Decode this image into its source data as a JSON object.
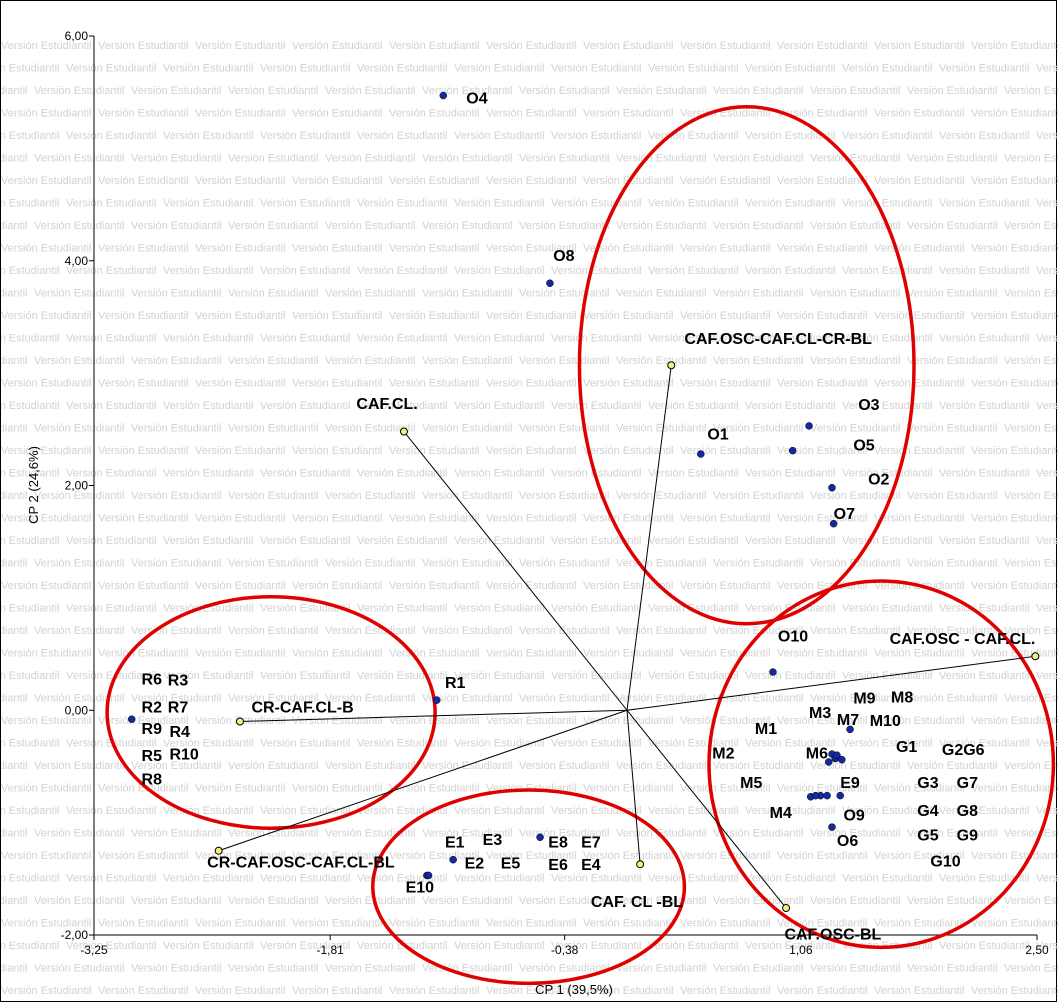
{
  "watermark": "Versión Estudiantil",
  "chart_data": {
    "type": "scatter",
    "xlabel": "CP 1 (39,5%)",
    "ylabel": "CP 2 (24,6%)",
    "xlim": [
      -3.25,
      2.5
    ],
    "ylim": [
      -2.0,
      6.0
    ],
    "xticks": [
      -3.25,
      -1.81,
      -0.38,
      1.06,
      2.5
    ],
    "xtick_labels": [
      "-3,25",
      "-1,81",
      "-0,38",
      "1,06",
      "2,50"
    ],
    "yticks": [
      -2.0,
      0.0,
      2.0,
      4.0,
      6.0
    ],
    "ytick_labels": [
      "-2,00",
      "0,00",
      "2,00",
      "4,00",
      "6,00"
    ],
    "colors": {
      "point": "#1428a0",
      "vector_point": "#f5f07a",
      "ellipse": "#e00000",
      "vector_line": "#000000"
    },
    "points": [
      {
        "label": "O4",
        "x": -1.12,
        "y": 5.47,
        "lx": -0.98,
        "ly": 5.4
      },
      {
        "label": "O8",
        "x": -0.47,
        "y": 3.8,
        "lx": -0.45,
        "ly": 4.0
      },
      {
        "label": "O1",
        "x": 0.45,
        "y": 2.28,
        "lx": 0.49,
        "ly": 2.41
      },
      {
        "label": "O3",
        "x": 1.11,
        "y": 2.53,
        "lx": 1.41,
        "ly": 2.67
      },
      {
        "label": "O5",
        "x": 1.01,
        "y": 2.31,
        "lx": 1.38,
        "ly": 2.31
      },
      {
        "label": "O2",
        "x": 1.25,
        "y": 1.98,
        "lx": 1.47,
        "ly": 2.01
      },
      {
        "label": "O7",
        "x": 1.26,
        "y": 1.66,
        "lx": 1.26,
        "ly": 1.7
      },
      {
        "label": "O10",
        "x": 0.89,
        "y": 0.34,
        "lx": 0.92,
        "ly": 0.61
      },
      {
        "label": "R1",
        "x": -1.16,
        "y": 0.09,
        "lx": -1.11,
        "ly": 0.2
      },
      {
        "label": "R6",
        "x": -3.02,
        "y": -0.08,
        "lx": -2.96,
        "ly": 0.23
      },
      {
        "label": "R3",
        "x": -3.02,
        "y": -0.08,
        "lx": -2.8,
        "ly": 0.22
      },
      {
        "label": "R2",
        "x": -3.02,
        "y": -0.08,
        "lx": -2.96,
        "ly": -0.02
      },
      {
        "label": "R7",
        "x": -3.02,
        "y": -0.08,
        "lx": -2.8,
        "ly": -0.02
      },
      {
        "label": "R9",
        "x": -3.02,
        "y": -0.08,
        "lx": -2.96,
        "ly": -0.21
      },
      {
        "label": "R4",
        "x": -3.02,
        "y": -0.08,
        "lx": -2.79,
        "ly": -0.24
      },
      {
        "label": "R5",
        "x": -3.02,
        "y": -0.08,
        "lx": -2.96,
        "ly": -0.45
      },
      {
        "label": "R10",
        "x": -3.02,
        "y": -0.08,
        "lx": -2.79,
        "ly": -0.44
      },
      {
        "label": "R8",
        "x": -3.02,
        "y": -0.08,
        "lx": -2.96,
        "ly": -0.66
      },
      {
        "label": "M9",
        "x": 1.36,
        "y": -0.17,
        "lx": 1.38,
        "ly": 0.06
      },
      {
        "label": "M8",
        "x": 1.36,
        "y": -0.17,
        "lx": 1.61,
        "ly": 0.07
      },
      {
        "label": "M3",
        "x": 1.36,
        "y": -0.17,
        "lx": 1.11,
        "ly": -0.07
      },
      {
        "label": "M7",
        "x": 1.36,
        "y": -0.17,
        "lx": 1.28,
        "ly": -0.13
      },
      {
        "label": "M10",
        "x": 1.36,
        "y": -0.17,
        "lx": 1.48,
        "ly": -0.14
      },
      {
        "label": "M1",
        "x": 1.25,
        "y": -0.39,
        "lx": 0.78,
        "ly": -0.21
      },
      {
        "label": "M6",
        "x": 1.27,
        "y": -0.43,
        "lx": 1.09,
        "ly": -0.43
      },
      {
        "label": "M2",
        "x": 1.23,
        "y": -0.46,
        "lx": 0.52,
        "ly": -0.43
      },
      {
        "label": "M5",
        "x": 1.18,
        "y": -0.76,
        "lx": 0.69,
        "ly": -0.69
      },
      {
        "label": "M4",
        "x": 1.12,
        "y": -0.77,
        "lx": 0.87,
        "ly": -0.96
      },
      {
        "label": "E9",
        "x": 1.15,
        "y": -0.76,
        "lx": 1.3,
        "ly": -0.69
      },
      {
        "label": "O9",
        "x": 1.25,
        "y": -1.04,
        "lx": 1.32,
        "ly": -0.98
      },
      {
        "label": "O6",
        "x": 1.25,
        "y": -1.04,
        "lx": 1.28,
        "ly": -1.21
      },
      {
        "label": "G1",
        "x": 1.36,
        "y": -0.17,
        "lx": 1.64,
        "ly": -0.37
      },
      {
        "label": "G2G6",
        "x": 1.36,
        "y": -0.17,
        "lx": 1.92,
        "ly": -0.4
      },
      {
        "label": "G3",
        "x": 1.36,
        "y": -0.17,
        "lx": 1.77,
        "ly": -0.69
      },
      {
        "label": "G7",
        "x": 1.36,
        "y": -0.17,
        "lx": 2.01,
        "ly": -0.69
      },
      {
        "label": "G4",
        "x": 1.36,
        "y": -0.17,
        "lx": 1.77,
        "ly": -0.94
      },
      {
        "label": "G8",
        "x": 1.36,
        "y": -0.17,
        "lx": 2.01,
        "ly": -0.94
      },
      {
        "label": "G5",
        "x": 1.36,
        "y": -0.17,
        "lx": 1.77,
        "ly": -1.16
      },
      {
        "label": "G9",
        "x": 1.36,
        "y": -0.17,
        "lx": 2.01,
        "ly": -1.16
      },
      {
        "label": "G10",
        "x": 1.36,
        "y": -0.17,
        "lx": 1.85,
        "ly": -1.39
      },
      {
        "label": "E1",
        "x": -1.06,
        "y": -1.33,
        "lx": -1.11,
        "ly": -1.22
      },
      {
        "label": "E3",
        "x": -1.06,
        "y": -1.33,
        "lx": -0.88,
        "ly": -1.2
      },
      {
        "label": "E2",
        "x": -1.06,
        "y": -1.33,
        "lx": -0.99,
        "ly": -1.41
      },
      {
        "label": "E5",
        "x": -1.06,
        "y": -1.33,
        "lx": -0.77,
        "ly": -1.41
      },
      {
        "label": "E10",
        "x": -1.22,
        "y": -1.47,
        "lx": -1.35,
        "ly": -1.62
      },
      {
        "label": "E8",
        "x": -0.53,
        "y": -1.13,
        "lx": -0.48,
        "ly": -1.22
      },
      {
        "label": "E7",
        "x": -0.53,
        "y": -1.13,
        "lx": -0.28,
        "ly": -1.22
      },
      {
        "label": "E6",
        "x": -0.53,
        "y": -1.13,
        "lx": -0.48,
        "ly": -1.42
      },
      {
        "label": "E4",
        "x": -0.53,
        "y": -1.13,
        "lx": -0.28,
        "ly": -1.42
      }
    ],
    "vectors": [
      {
        "label": "CAF.OSC-CAF.CL-CR-BL",
        "x": 0.27,
        "y": 3.07,
        "lx": 0.35,
        "ly": 3.26,
        "anchor": "start"
      },
      {
        "label": "CAF.CL.",
        "x": -1.36,
        "y": 2.48,
        "lx": -1.65,
        "ly": 2.68,
        "anchor": "start"
      },
      {
        "label": "CR-CAF.CL-B",
        "x": -2.36,
        "y": -0.1,
        "lx": -2.29,
        "ly": -0.02,
        "anchor": "start"
      },
      {
        "label": "CR-CAF.OSC-CAF.CL-BL",
        "x": -2.49,
        "y": -1.25,
        "lx": -2.56,
        "ly": -1.4,
        "anchor": "start"
      },
      {
        "label": "CAF. CL -BL",
        "x": 0.08,
        "y": -1.37,
        "lx": -0.22,
        "ly": -1.75,
        "anchor": "start"
      },
      {
        "label": "CAF.OSC-BL",
        "x": 0.97,
        "y": -1.76,
        "lx": 0.96,
        "ly": -2.04,
        "anchor": "start"
      },
      {
        "label": "CAF.OSC - CAF.CL.",
        "x": 2.49,
        "y": 0.48,
        "lx": 2.49,
        "ly": 0.59,
        "anchor": "end"
      }
    ],
    "ellipses": [
      {
        "cx": 0.73,
        "cy": 3.07,
        "rx": 1.02,
        "ry": 2.3
      },
      {
        "cx": -2.17,
        "cy": -0.02,
        "rx": 1.0,
        "ry": 1.03
      },
      {
        "cx": -0.6,
        "cy": -1.57,
        "rx": 0.95,
        "ry": 0.86
      },
      {
        "cx": 1.55,
        "cy": -0.48,
        "rx": 1.05,
        "ry": 1.63
      }
    ]
  }
}
